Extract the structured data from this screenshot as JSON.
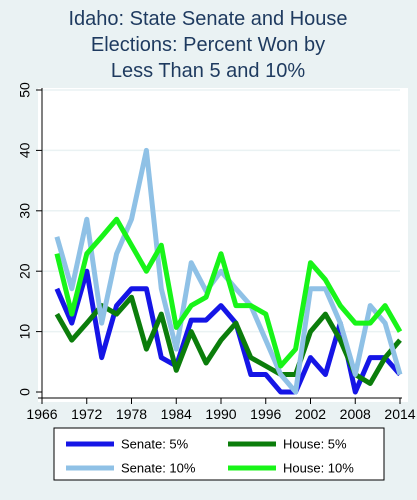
{
  "chart_data": {
    "type": "line",
    "title_lines": [
      "Idaho: State Senate and House",
      "Elections: Percent Won by",
      "Less Than 5 and 10%"
    ],
    "xlabel": "",
    "ylabel": "",
    "xlim": [
      1966,
      2014
    ],
    "ylim": [
      0,
      50
    ],
    "x_ticks": [
      "1966",
      "1972",
      "1978",
      "1984",
      "1990",
      "1996",
      "2002",
      "2008",
      "2014"
    ],
    "y_ticks": [
      "0",
      "10",
      "20",
      "30",
      "40",
      "50"
    ],
    "grid": "horizontal",
    "legend_position": "bottom",
    "x": [
      1968,
      1970,
      1972,
      1974,
      1976,
      1978,
      1980,
      1982,
      1984,
      1986,
      1988,
      1990,
      1992,
      1994,
      1996,
      1998,
      2000,
      2002,
      2004,
      2006,
      2008,
      2010,
      2012,
      2014
    ],
    "series": [
      {
        "name": "Senate: 5%",
        "color": "#1515e6",
        "width": 5,
        "values": [
          17.1,
          11.4,
          20.0,
          5.7,
          14.3,
          17.1,
          17.1,
          5.7,
          4.3,
          11.9,
          11.9,
          14.3,
          11.4,
          2.9,
          2.9,
          0.0,
          0.0,
          5.7,
          2.9,
          11.4,
          0.0,
          5.7,
          5.7,
          2.9
        ]
      },
      {
        "name": "House: 5%",
        "color": "#0b7d0b",
        "width": 5,
        "values": [
          12.9,
          8.6,
          11.4,
          14.3,
          12.9,
          15.7,
          7.1,
          12.9,
          3.6,
          10.0,
          4.8,
          8.6,
          11.4,
          5.7,
          4.3,
          2.9,
          2.9,
          10.0,
          12.9,
          8.6,
          2.9,
          1.4,
          5.7,
          8.6
        ]
      },
      {
        "name": "Senate: 10%",
        "color": "#8fc1e6",
        "width": 5,
        "values": [
          25.7,
          17.1,
          28.6,
          11.4,
          22.9,
          28.6,
          40.0,
          17.1,
          7.1,
          21.4,
          16.7,
          20.0,
          17.1,
          14.3,
          8.6,
          2.9,
          0.0,
          17.1,
          17.1,
          11.4,
          2.9,
          14.3,
          11.4,
          2.9
        ]
      },
      {
        "name": "House: 10%",
        "color": "#18f418",
        "width": 5,
        "values": [
          22.9,
          12.9,
          22.9,
          25.7,
          28.6,
          24.3,
          20.0,
          24.3,
          10.7,
          14.3,
          15.7,
          22.9,
          14.3,
          14.3,
          12.9,
          4.3,
          7.1,
          21.4,
          18.6,
          14.3,
          11.4,
          11.4,
          14.3,
          10.0
        ]
      }
    ]
  },
  "legend": {
    "items": [
      {
        "label": "Senate: 5%",
        "color": "#1515e6"
      },
      {
        "label": "House: 5%",
        "color": "#0b7d0b"
      },
      {
        "label": "Senate: 10%",
        "color": "#8fc1e6"
      },
      {
        "label": "House: 10%",
        "color": "#18f418"
      }
    ]
  }
}
